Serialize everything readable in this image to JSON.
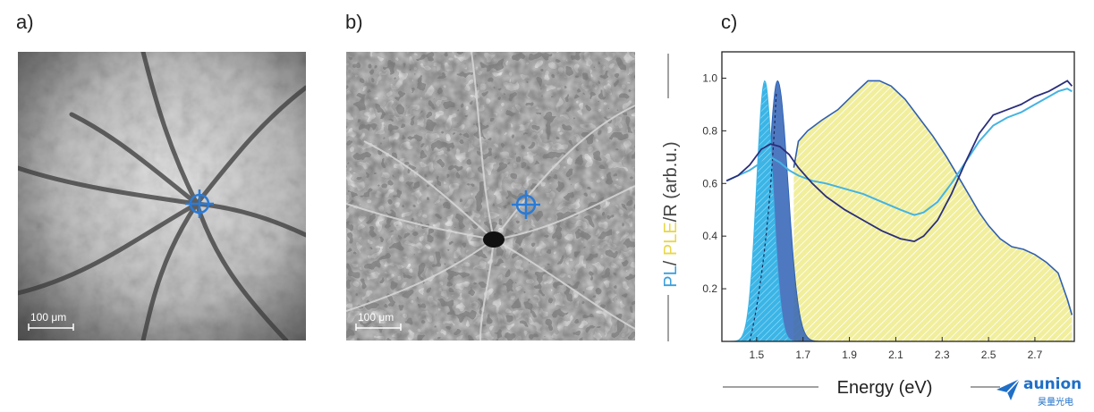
{
  "panels": {
    "a": {
      "label": "a)",
      "scale_label": "100 μm"
    },
    "b": {
      "label": "b)",
      "scale_label": "100 μm"
    },
    "c": {
      "label": "c)"
    }
  },
  "logo": {
    "main": "aunion",
    "sub": "昊量光电"
  },
  "colors": {
    "pl": "#3bb4e6",
    "pl_dark": "#2f62b5",
    "ple": "#f1ee9c",
    "ple_line": "#c9c46a",
    "r_dark": "#2a2e7a",
    "r_light": "#45b3e2",
    "reticle": "#2a7bd6"
  },
  "chart_data": {
    "type": "line",
    "xlabel": "Energy (eV)",
    "ylabel_parts": [
      {
        "text": "PL",
        "color": "#3b9fdd"
      },
      {
        "text": "/ ",
        "color": "#444444"
      },
      {
        "text": "PLE",
        "color": "#e8d84a"
      },
      {
        "text": "/R (arb.u.)",
        "color": "#444444"
      }
    ],
    "xlim": [
      1.35,
      2.87
    ],
    "ylim": [
      0,
      1.1
    ],
    "xticks": [
      "1.5",
      "1.7",
      "1.9",
      "2.1",
      "2.3",
      "2.5",
      "2.7"
    ],
    "yticks": [
      "0.2",
      "0.4",
      "0.6",
      "0.8",
      "1.0"
    ],
    "pl_light": {
      "peak": 1.535,
      "width_left": 0.035,
      "width_right": 0.035,
      "height": 0.99
    },
    "pl_dark": {
      "peak": 1.59,
      "width_left": 0.04,
      "width_right": 0.045,
      "height": 0.99
    },
    "ple": {
      "x": [
        1.66,
        1.68,
        1.72,
        1.78,
        1.85,
        1.92,
        1.98,
        2.03,
        2.08,
        2.14,
        2.2,
        2.26,
        2.32,
        2.38,
        2.42,
        2.46,
        2.5,
        2.55,
        2.6,
        2.65,
        2.7,
        2.75,
        2.8,
        2.84,
        2.86
      ],
      "y": [
        0.66,
        0.76,
        0.8,
        0.84,
        0.88,
        0.94,
        0.99,
        0.99,
        0.97,
        0.92,
        0.85,
        0.78,
        0.7,
        0.61,
        0.55,
        0.49,
        0.44,
        0.39,
        0.36,
        0.35,
        0.33,
        0.3,
        0.26,
        0.16,
        0.1
      ]
    },
    "r_dark": {
      "x": [
        1.37,
        1.42,
        1.47,
        1.52,
        1.56,
        1.6,
        1.64,
        1.68,
        1.74,
        1.8,
        1.88,
        1.96,
        2.04,
        2.12,
        2.18,
        2.22,
        2.28,
        2.34,
        2.4,
        2.46,
        2.52,
        2.58,
        2.64,
        2.7,
        2.76,
        2.8,
        2.84,
        2.86
      ],
      "y": [
        0.61,
        0.63,
        0.67,
        0.73,
        0.75,
        0.74,
        0.71,
        0.66,
        0.6,
        0.55,
        0.5,
        0.46,
        0.42,
        0.39,
        0.38,
        0.4,
        0.46,
        0.56,
        0.68,
        0.79,
        0.86,
        0.88,
        0.9,
        0.93,
        0.95,
        0.97,
        0.99,
        0.97
      ]
    },
    "r_light": {
      "x": [
        1.37,
        1.42,
        1.47,
        1.52,
        1.56,
        1.6,
        1.64,
        1.68,
        1.74,
        1.8,
        1.88,
        1.96,
        2.04,
        2.12,
        2.18,
        2.22,
        2.28,
        2.34,
        2.4,
        2.46,
        2.52,
        2.58,
        2.64,
        2.7,
        2.76,
        2.8,
        2.84,
        2.86
      ],
      "y": [
        0.61,
        0.63,
        0.65,
        0.68,
        0.7,
        0.68,
        0.65,
        0.63,
        0.61,
        0.6,
        0.58,
        0.56,
        0.53,
        0.5,
        0.48,
        0.49,
        0.53,
        0.6,
        0.68,
        0.76,
        0.82,
        0.85,
        0.87,
        0.9,
        0.93,
        0.95,
        0.96,
        0.95
      ]
    }
  }
}
